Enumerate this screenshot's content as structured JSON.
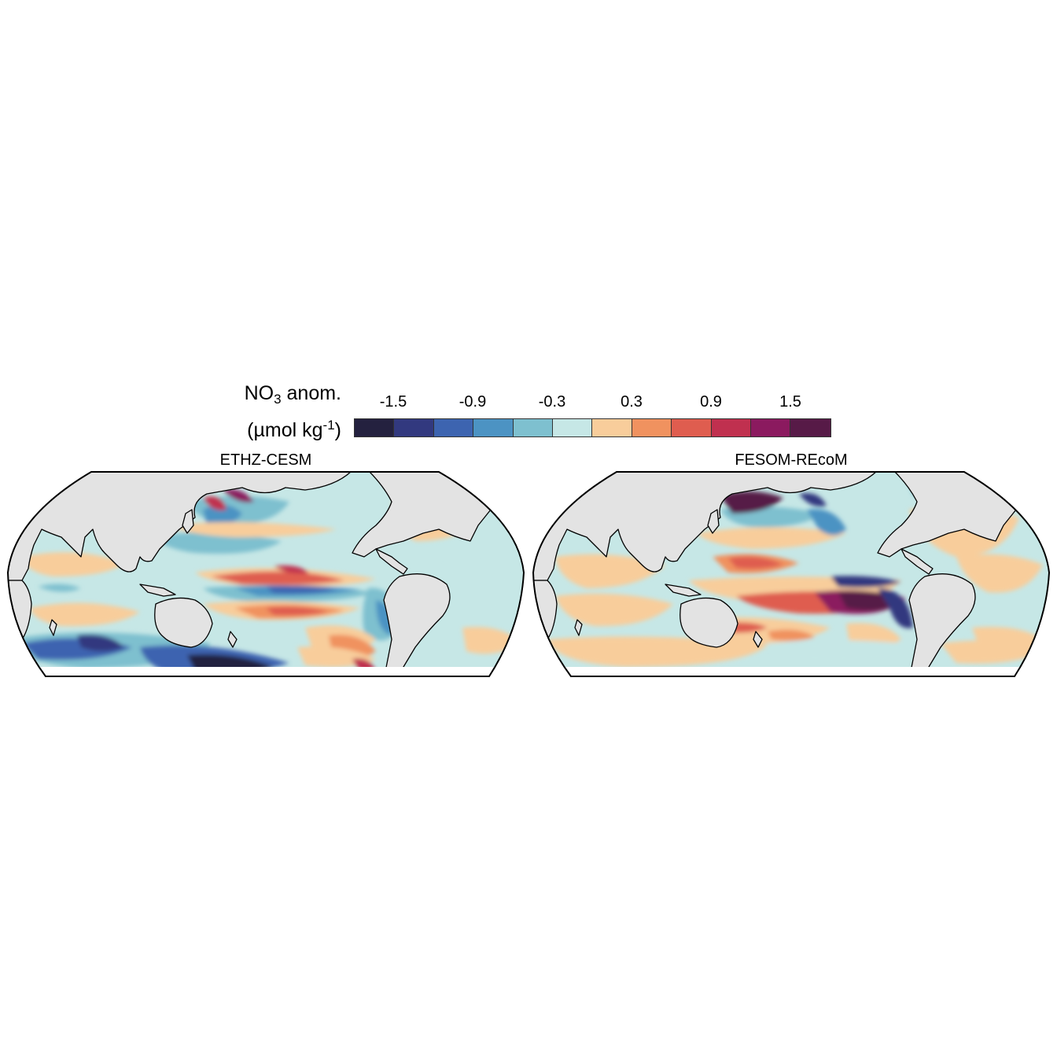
{
  "legend": {
    "title_main": "NO",
    "title_sub": "3",
    "title_suffix": " anom.",
    "units_prefix": "(µmol kg",
    "units_sup": "-1",
    "units_suffix": ")",
    "tick_labels": [
      "-1.5",
      "-0.9",
      "-0.3",
      "0.3",
      "0.9",
      "1.5"
    ],
    "bins": [
      {
        "range": "< -1.5",
        "color": "#24213f"
      },
      {
        "range": "-1.5 to -1.2",
        "color": "#32397f"
      },
      {
        "range": "-1.2 to -0.9",
        "color": "#3d64b0"
      },
      {
        "range": "-0.9 to -0.6",
        "color": "#4c93c3"
      },
      {
        "range": "-0.6 to -0.3",
        "color": "#7ec0cf"
      },
      {
        "range": "-0.3 to 0",
        "color": "#c6e7e6"
      },
      {
        "range": "0 to 0.3",
        "color": "#f8cd9b"
      },
      {
        "range": "0.3 to 0.6",
        "color": "#f0925f"
      },
      {
        "range": "0.6 to 0.9",
        "color": "#df5d4f"
      },
      {
        "range": "0.9 to 1.2",
        "color": "#c0304f"
      },
      {
        "range": "1.2 to 1.5",
        "color": "#8b1a5f"
      },
      {
        "range": "> 1.5",
        "color": "#571a47"
      }
    ]
  },
  "panels": [
    {
      "title": "ETHZ-CESM"
    },
    {
      "title": "FESOM-REcoM"
    }
  ],
  "colors": {
    "land": "#e3e3e3",
    "ocean_background": "#c6e7e6",
    "outline": "#000000"
  }
}
